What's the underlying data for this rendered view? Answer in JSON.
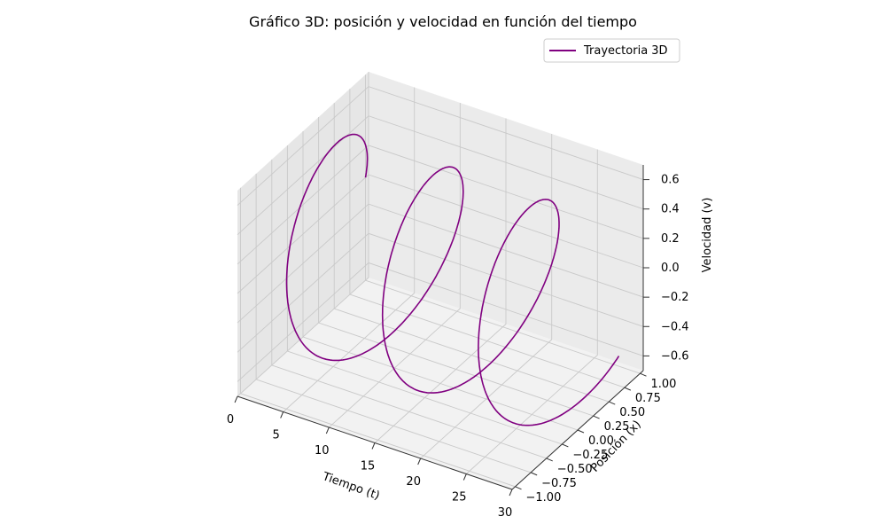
{
  "chart_data": {
    "type": "line3d",
    "title": "Gráfico 3D: posición y velocidad en función del tiempo",
    "xlabel": "Tiempo (t)",
    "ylabel": "Posición (x)",
    "zlabel": "Velocidad (v)",
    "xlim": [
      0,
      30
    ],
    "ylim": [
      -1.05,
      1.05
    ],
    "zlim": [
      -0.7,
      0.7
    ],
    "x_ticks": [
      "0",
      "5",
      "10",
      "15",
      "20",
      "25",
      "30"
    ],
    "y_ticks": [
      "−1.00",
      "−0.75",
      "−0.50",
      "−0.25",
      "0.00",
      "0.25",
      "0.50",
      "0.75",
      "1.00"
    ],
    "z_ticks": [
      "−0.6",
      "−0.4",
      "−0.2",
      "0.0",
      "0.2",
      "0.4",
      "0.6"
    ],
    "grid": true,
    "legend_position": "top-right",
    "series": [
      {
        "name": "Trayectoria 3D",
        "color": "#800080",
        "function": "x = cos(0.6 t), v = 0.6 sin(0.6 t)",
        "t_range": [
          0,
          30
        ]
      }
    ]
  }
}
